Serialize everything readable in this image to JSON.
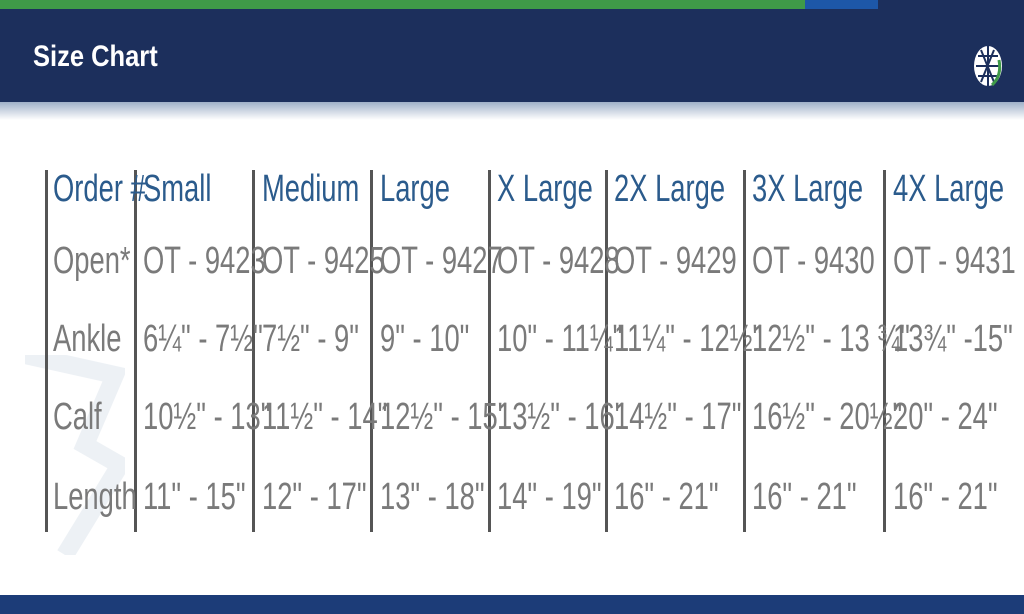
{
  "header": {
    "title": "Size Chart",
    "logo_icon": "globe-logo-icon"
  },
  "colors": {
    "navy": "#1c2f5c",
    "green": "#3f9a48",
    "header_text": "#2b5b8c",
    "body_text": "#7a7a7a"
  },
  "table": {
    "columns": [
      "Order #",
      "Small",
      "Medium",
      "Large",
      "X Large",
      "2X Large",
      "3X Large",
      "4X Large"
    ],
    "rows": [
      {
        "label": "Open*",
        "values": [
          "OT - 9423",
          "OT - 9425",
          "OT - 9427",
          "OT - 9428",
          "OT - 9429",
          "OT - 9430",
          "OT - 9431"
        ]
      },
      {
        "label": "Ankle",
        "values": [
          "6¼\" - 7½\"",
          "7½\" - 9\"",
          "9\" - 10\"",
          "10\" - 11¼\"",
          "11¼\" - 12½\"",
          "12½\" - 13 ¾\"",
          "13¾\" -15\""
        ]
      },
      {
        "label": "Calf",
        "values": [
          "10½\" - 13\"",
          "11½\" - 14\"",
          "12½\" - 15\"",
          "13½\" - 16\"",
          "14½\" - 17\"",
          "16½\" - 20½\"",
          "20\" - 24\""
        ]
      },
      {
        "label": "Length",
        "values": [
          "11\" - 15\"",
          "12\" - 17\"",
          "13\" - 18\"",
          "14\" - 19\"",
          "16\" - 21\"",
          "16\" - 21\"",
          "16\" - 21\""
        ]
      }
    ]
  }
}
